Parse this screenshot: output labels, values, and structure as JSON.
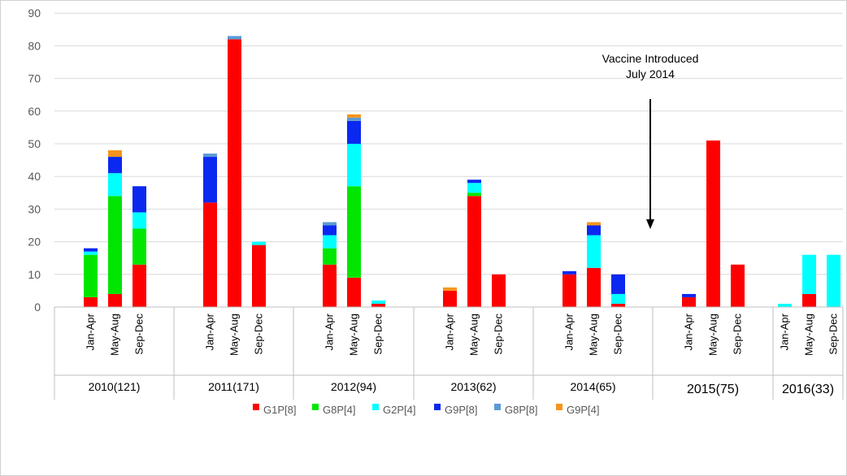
{
  "chart_data": {
    "type": "bar",
    "stacked": true,
    "ylim": [
      0,
      90
    ],
    "yticks": [
      0,
      10,
      20,
      30,
      40,
      50,
      60,
      70,
      80,
      90
    ],
    "grid": true,
    "legend_position": "bottom",
    "groups": [
      {
        "label": "2010(121)",
        "categories": [
          "Jan-Apr",
          "May-Aug",
          "Sep-Dec"
        ]
      },
      {
        "label": "2011(171)",
        "categories": [
          "Jan-Apr",
          "May-Aug",
          "Sep-Dec"
        ]
      },
      {
        "label": "2012(94)",
        "categories": [
          "Jan-Apr",
          "May-Aug",
          "Sep-Dec"
        ]
      },
      {
        "label": "2013(62)",
        "categories": [
          "Jan-Apr",
          "May-Aug",
          "Sep-Dec"
        ]
      },
      {
        "label": "2014(65)",
        "categories": [
          "Jan-Apr",
          "May-Aug",
          "Sep-Dec"
        ]
      },
      {
        "label": "2015(75)",
        "categories": [
          "Jan-Apr",
          "May-Aug",
          "Sep-Dec"
        ]
      },
      {
        "label": "2016(33)",
        "categories": [
          "Jan-Apr",
          "May-Aug",
          "Sep-Dec"
        ]
      }
    ],
    "series": [
      {
        "name": "G1P[8]",
        "color": "#ff0000",
        "values": [
          3,
          4,
          13,
          32,
          82,
          19,
          13,
          9,
          1,
          5,
          34,
          10,
          10,
          12,
          1,
          3,
          51,
          13,
          0,
          4,
          0
        ]
      },
      {
        "name": "G8P[4]",
        "color": "#00e600",
        "values": [
          13,
          30,
          11,
          0,
          0,
          0,
          5,
          28,
          0,
          0,
          1,
          0,
          0,
          0,
          0,
          0,
          0,
          0,
          0,
          0,
          0
        ]
      },
      {
        "name": "G2P[4]",
        "color": "#00ffff",
        "values": [
          1,
          7,
          5,
          0,
          0,
          1,
          4,
          13,
          1,
          0,
          3,
          0,
          0,
          10,
          3,
          0,
          0,
          0,
          1,
          12,
          16
        ]
      },
      {
        "name": "G9P[8]",
        "color": "#0a28f0",
        "values": [
          1,
          5,
          8,
          14,
          0,
          0,
          3,
          7,
          0,
          0,
          1,
          0,
          1,
          3,
          6,
          1,
          0,
          0,
          0,
          0,
          0
        ]
      },
      {
        "name": "G8P[8]",
        "color": "#5b9bd5",
        "values": [
          0,
          0,
          0,
          1,
          1,
          0,
          1,
          1,
          0,
          0,
          0,
          0,
          0,
          0,
          0,
          0,
          0,
          0,
          0,
          0,
          0
        ]
      },
      {
        "name": "G9P[4]",
        "color": "#f7941d",
        "values": [
          0,
          2,
          0,
          0,
          0,
          0,
          0,
          1,
          0,
          1,
          0,
          0,
          0,
          1,
          0,
          0,
          0,
          0,
          0,
          0,
          0
        ]
      }
    ],
    "annotations": [
      {
        "text_lines": [
          "Vaccine Introduced",
          "July 2014"
        ],
        "arrow": "down"
      }
    ]
  }
}
